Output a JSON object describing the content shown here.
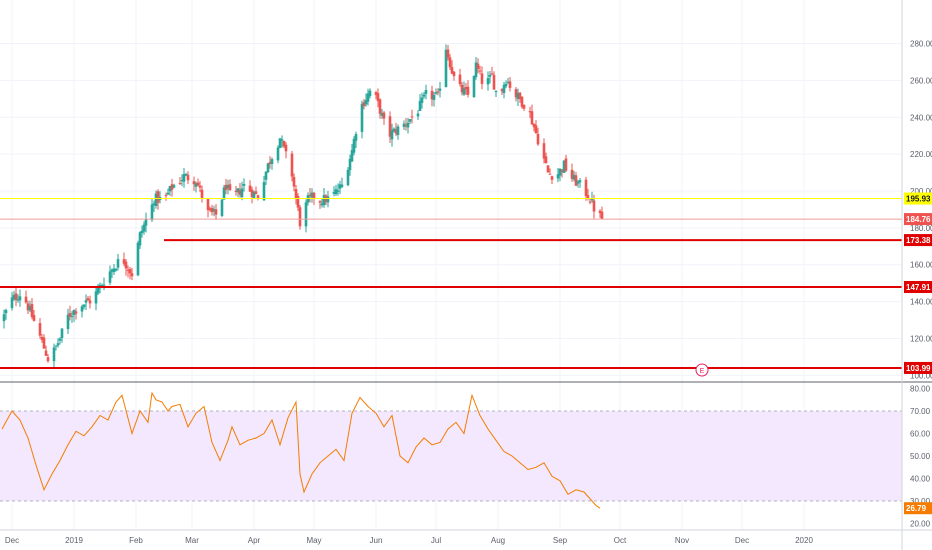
{
  "chart_data": [
    {
      "type": "candlestick",
      "title": "",
      "price_axis": {
        "ylim": [
          98,
          302
        ],
        "ticks": [
          100,
          120,
          140,
          160,
          180,
          200,
          220,
          240,
          260,
          280
        ],
        "tick_labels": [
          "100.00",
          "120.00",
          "140.00",
          "160.00",
          "180.00",
          "200.00",
          "220.00",
          "240.00",
          "260.00",
          "280.00"
        ]
      },
      "time_axis": {
        "labels": [
          "Dec",
          "2019",
          "Feb",
          "Mar",
          "Apr",
          "May",
          "Jun",
          "Jul",
          "Aug",
          "Sep",
          "Oct",
          "Nov",
          "Dec",
          "2020"
        ],
        "label_days": [
          0,
          31,
          62,
          90,
          121,
          151,
          182,
          212,
          243,
          274,
          304,
          335,
          365,
          396
        ]
      },
      "colors": {
        "up": "#26a69a",
        "down": "#ef5350",
        "level": "#e00000",
        "rsi_line": "#f57c00",
        "rsi_band": "#f3e8fd"
      },
      "horizontal_levels": [
        {
          "value": 195.93,
          "label": "195.93",
          "color": "#ffff00",
          "kind": "current"
        },
        {
          "value": 184.76,
          "label": "184.76",
          "color": "#ef9a9a",
          "kind": "last"
        },
        {
          "value": 173.38,
          "label": "173.38",
          "color": "#e00000",
          "kind": "support"
        },
        {
          "value": 147.91,
          "label": "147.91",
          "color": "#e00000",
          "kind": "support"
        },
        {
          "value": 103.99,
          "label": "103.99",
          "color": "#e00000",
          "kind": "support"
        }
      ],
      "earnings_marker": {
        "label": "E",
        "day": 345
      },
      "close_anchors": {
        "days": [
          -5,
          0,
          5,
          7,
          13,
          18,
          20,
          24,
          28,
          34,
          40,
          48,
          55,
          60,
          64,
          70,
          71,
          76,
          80,
          86,
          92,
          98,
          102,
          107,
          110,
          116,
          123,
          128,
          134,
          140,
          144,
          148,
          151,
          154,
          159,
          165,
          170,
          174,
          180,
          184,
          188,
          196,
          202,
          207,
          213,
          217,
          222,
          228,
          232,
          236,
          240,
          243,
          247,
          252,
          258,
          263,
          268,
          272,
          276,
          280,
          285,
          289,
          292,
          295
        ],
        "closes": [
          130,
          141,
          145,
          140,
          124,
          109,
          111,
          120,
          132,
          138,
          141,
          155,
          164,
          155,
          176,
          192,
          196,
          195,
          202,
          208,
          206,
          188,
          187,
          203,
          195,
          203,
          197,
          214,
          229,
          209,
          183,
          195,
          197,
          195,
          196,
          203,
          222,
          245,
          256,
          244,
          230,
          236,
          242,
          252,
          251,
          278,
          257,
          252,
          268,
          257,
          262,
          250,
          261,
          252,
          245,
          228,
          210,
          208,
          214,
          207,
          202,
          196,
          188,
          185
        ]
      }
    },
    {
      "type": "line",
      "title": "",
      "indicator": "RSI",
      "ylim": [
        18,
        82
      ],
      "ticks": [
        20,
        30,
        40,
        50,
        60,
        70,
        80
      ],
      "tick_labels": [
        "20.00",
        "30.00",
        "40.00",
        "50.00",
        "60.00",
        "70.00",
        "80.00"
      ],
      "band": [
        30,
        70
      ],
      "current": {
        "value": 26.79,
        "label": "26.79"
      },
      "series": [
        {
          "days": [
            -5,
            0,
            4,
            8,
            12,
            16,
            20,
            24,
            28,
            32,
            36,
            40,
            44,
            48,
            52,
            55,
            60,
            64,
            68,
            70,
            72,
            75,
            78,
            80,
            84,
            88,
            92,
            96,
            100,
            104,
            108,
            110,
            114,
            118,
            122,
            126,
            130,
            134,
            138,
            142,
            144,
            146,
            150,
            154,
            158,
            162,
            166,
            170,
            174,
            178,
            182,
            186,
            190,
            194,
            198,
            202,
            206,
            210,
            214,
            218,
            222,
            226,
            230,
            234,
            238,
            242,
            246,
            250,
            254,
            258,
            262,
            266,
            270,
            274,
            278,
            282,
            286,
            290,
            292,
            294
          ],
          "values": [
            62,
            70,
            66,
            58,
            46,
            35,
            42,
            48,
            55,
            61,
            59,
            63,
            68,
            66,
            74,
            77,
            60,
            70,
            65,
            78,
            75,
            74,
            70,
            72,
            73,
            63,
            69,
            72,
            56,
            48,
            57,
            63,
            55,
            57,
            58,
            60,
            66,
            55,
            67,
            74,
            42,
            34,
            42,
            47,
            50,
            53,
            48,
            69,
            76,
            72,
            69,
            63,
            68,
            50,
            47,
            54,
            58,
            55,
            56,
            62,
            65,
            60,
            77,
            68,
            62,
            57,
            52,
            50,
            47,
            44,
            45,
            47,
            41,
            39,
            33,
            35,
            34,
            30,
            28,
            26.79
          ]
        }
      ]
    }
  ]
}
